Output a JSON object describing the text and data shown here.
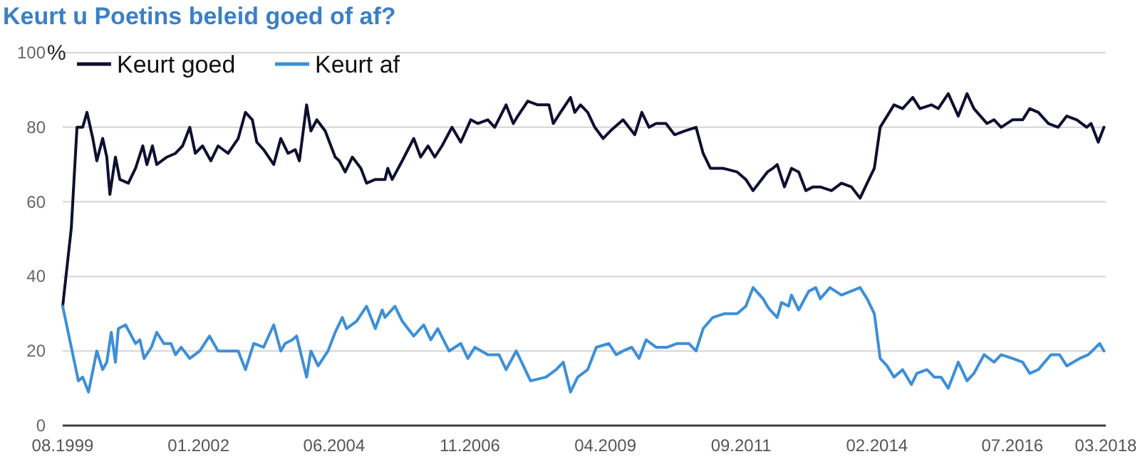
{
  "chart_data": {
    "type": "line",
    "title": "Keurt u Poetins beleid goed of af?",
    "ylabel": "%",
    "xlim": [
      "1999-08-01",
      "2018-03-01"
    ],
    "xticks": [
      {
        "value": "1999-08-01",
        "label": "08.1999"
      },
      {
        "value": "2002-01-01",
        "label": "01.2002"
      },
      {
        "value": "2004-06-01",
        "label": "06.2004"
      },
      {
        "value": "2006-11-01",
        "label": "11.2006"
      },
      {
        "value": "2009-04-01",
        "label": "04.2009"
      },
      {
        "value": "2011-09-01",
        "label": "09.2011"
      },
      {
        "value": "2014-02-01",
        "label": "02.2014"
      },
      {
        "value": "2016-07-01",
        "label": "07.2016"
      },
      {
        "value": "2018-03-01",
        "label": "03.2018"
      }
    ],
    "ylim": [
      0,
      100
    ],
    "yticks": [
      0,
      20,
      40,
      60,
      80,
      100
    ],
    "grid": "y",
    "legend": "top left",
    "marker": "none",
    "line_style": "solid",
    "series": [
      {
        "name": "Keurt goed",
        "color": "#0f1030",
        "x": [
          "1999-08-01",
          "1999-09-26",
          "1999-11-02",
          "1999-12-09",
          "2000-01-06",
          "2000-02-13",
          "2000-03-10",
          "2000-04-17",
          "2000-05-14",
          "2000-06-03",
          "2000-07-09",
          "2000-08-07",
          "2000-10-01",
          "2000-11-17",
          "2001-01-03",
          "2001-01-30",
          "2001-03-07",
          "2001-04-04",
          "2001-06-09",
          "2001-08-04",
          "2001-09-19",
          "2001-11-05",
          "2001-12-11",
          "2002-01-27",
          "2002-03-22",
          "2002-05-08",
          "2002-07-12",
          "2002-09-16",
          "2002-11-02",
          "2002-12-17",
          "2003-01-15",
          "2003-02-28",
          "2003-05-05",
          "2003-06-20",
          "2003-08-06",
          "2003-09-22",
          "2003-10-19",
          "2003-12-05",
          "2004-01-02",
          "2004-02-09",
          "2004-04-04",
          "2004-06-08",
          "2004-07-05",
          "2004-08-12",
          "2004-09-28",
          "2004-11-22",
          "2004-12-29",
          "2005-02-24",
          "2005-04-28",
          "2005-05-16",
          "2005-06-14",
          "2005-08-18",
          "2005-11-01",
          "2005-12-16",
          "2006-02-02",
          "2006-03-18",
          "2006-05-04",
          "2006-07-08",
          "2006-09-03",
          "2006-11-07",
          "2006-12-22",
          "2007-02-26",
          "2007-04-12",
          "2007-06-25",
          "2007-08-11",
          "2007-09-09",
          "2007-11-13",
          "2008-01-17",
          "2008-03-30",
          "2008-04-27",
          "2008-06-13",
          "2008-08-17",
          "2008-09-14",
          "2008-10-21",
          "2008-12-07",
          "2009-01-22",
          "2009-03-17",
          "2009-05-03",
          "2009-07-25",
          "2009-10-09",
          "2009-11-24",
          "2010-01-10",
          "2010-02-25",
          "2010-04-30",
          "2010-06-25",
          "2010-08-29",
          "2010-11-12",
          "2010-12-28",
          "2011-02-13",
          "2011-05-06",
          "2011-08-07",
          "2011-10-02",
          "2011-11-18",
          "2012-02-19",
          "2012-03-26",
          "2012-04-23",
          "2012-06-09",
          "2012-07-25",
          "2012-09-10",
          "2012-10-26",
          "2012-12-12",
          "2013-01-28",
          "2013-04-11",
          "2013-06-15",
          "2013-08-19",
          "2013-10-14",
          "2013-11-29",
          "2014-01-15",
          "2014-02-22",
          "2014-04-08",
          "2014-05-23",
          "2014-07-18",
          "2014-09-22",
          "2014-11-08",
          "2015-01-21",
          "2015-03-07",
          "2015-05-11",
          "2015-07-15",
          "2015-09-10",
          "2015-10-25",
          "2016-01-18",
          "2016-03-04",
          "2016-04-19",
          "2016-07-02",
          "2016-09-06",
          "2016-10-22",
          "2016-12-17",
          "2017-02-21",
          "2017-04-25",
          "2017-06-20",
          "2017-08-24",
          "2017-10-28",
          "2017-11-25",
          "2018-01-11",
          "2018-02-17"
        ],
        "values": [
          32,
          53,
          80,
          80,
          84,
          77,
          71,
          77,
          72,
          62,
          72,
          66,
          65,
          69,
          75,
          70,
          75,
          70,
          72,
          73,
          75,
          80,
          73,
          75,
          71,
          75,
          73,
          77,
          84,
          82,
          76,
          74,
          70,
          77,
          73,
          74,
          71,
          86,
          79,
          82,
          79,
          72,
          71,
          68,
          72,
          69,
          65,
          66,
          66,
          69,
          66,
          71,
          77,
          72,
          75,
          72,
          75,
          80,
          76,
          82,
          81,
          82,
          80,
          86,
          81,
          83,
          87,
          86,
          86,
          81,
          84,
          88,
          84,
          86,
          84,
          80,
          77,
          79,
          82,
          78,
          84,
          80,
          81,
          81,
          78,
          79,
          80,
          73,
          69,
          69,
          68,
          66,
          63,
          68,
          69,
          70,
          64,
          69,
          68,
          63,
          64,
          64,
          63,
          65,
          64,
          61,
          65,
          69,
          80,
          83,
          86,
          85,
          88,
          85,
          86,
          85,
          89,
          83,
          89,
          85,
          81,
          82,
          80,
          82,
          82,
          85,
          84,
          81,
          80,
          83,
          82,
          80,
          81,
          76,
          80
        ]
      },
      {
        "name": "Keurt af",
        "color": "#3d8fd8",
        "x": [
          "1999-08-01",
          "1999-11-11",
          "1999-12-09",
          "2000-01-16",
          "2000-03-10",
          "2000-04-17",
          "2000-05-14",
          "2000-06-12",
          "2000-07-09",
          "2000-07-28",
          "2000-09-13",
          "2000-11-17",
          "2000-12-15",
          "2001-01-12",
          "2001-02-28",
          "2001-04-04",
          "2001-05-20",
          "2001-07-06",
          "2001-08-04",
          "2001-09-10",
          "2001-11-05",
          "2002-01-09",
          "2002-03-13",
          "2002-05-08",
          "2002-09-16",
          "2002-11-02",
          "2002-12-26",
          "2003-02-28",
          "2003-05-05",
          "2003-06-20",
          "2003-07-18",
          "2003-09-03",
          "2003-10-01",
          "2003-12-05",
          "2004-01-02",
          "2004-02-18",
          "2004-04-22",
          "2004-06-08",
          "2004-07-24",
          "2004-08-21",
          "2004-10-25",
          "2004-12-29",
          "2005-02-24",
          "2005-04-10",
          "2005-04-28",
          "2005-07-02",
          "2005-08-18",
          "2005-11-01",
          "2006-01-05",
          "2006-02-20",
          "2006-04-06",
          "2006-06-19",
          "2006-09-03",
          "2006-10-19",
          "2006-12-04",
          "2007-02-26",
          "2007-05-10",
          "2007-06-25",
          "2007-08-30",
          "2007-12-01",
          "2008-03-11",
          "2008-05-16",
          "2008-07-01",
          "2008-08-17",
          "2008-10-03",
          "2008-12-07",
          "2009-02-01",
          "2009-04-24",
          "2009-06-10",
          "2009-07-25",
          "2009-09-20",
          "2009-11-06",
          "2009-12-22",
          "2010-02-25",
          "2010-05-09",
          "2010-07-13",
          "2010-09-26",
          "2010-11-12",
          "2010-12-28",
          "2011-03-01",
          "2011-05-15",
          "2011-08-07",
          "2011-09-04",
          "2011-10-02",
          "2011-11-18",
          "2012-01-22",
          "2012-02-19",
          "2012-03-08",
          "2012-04-23",
          "2012-05-21",
          "2012-07-06",
          "2012-07-25",
          "2012-09-10",
          "2012-11-14",
          "2012-12-30",
          "2013-01-28",
          "2013-04-01",
          "2013-06-15",
          "2013-10-14",
          "2013-11-29",
          "2014-01-15",
          "2014-02-22",
          "2014-04-08",
          "2014-05-23",
          "2014-07-18",
          "2014-09-13",
          "2014-10-19",
          "2014-12-24",
          "2015-02-09",
          "2015-03-25",
          "2015-05-11",
          "2015-07-15",
          "2015-09-10",
          "2015-10-25",
          "2015-12-30",
          "2016-03-04",
          "2016-04-19",
          "2016-07-02",
          "2016-09-06",
          "2016-10-22",
          "2016-12-17",
          "2017-03-09",
          "2017-05-04",
          "2017-06-20",
          "2017-09-12",
          "2017-11-07",
          "2018-01-20",
          "2018-02-17"
        ],
        "values": [
          32,
          12,
          13,
          9,
          20,
          15,
          17,
          25,
          17,
          26,
          27,
          22,
          23,
          18,
          21,
          25,
          22,
          22,
          19,
          21,
          18,
          20,
          24,
          20,
          20,
          15,
          22,
          21,
          27,
          20,
          22,
          23,
          24,
          13,
          20,
          16,
          20,
          25,
          29,
          26,
          28,
          32,
          26,
          31,
          29,
          32,
          28,
          24,
          27,
          23,
          26,
          20,
          22,
          18,
          21,
          19,
          19,
          15,
          20,
          12,
          13,
          15,
          17,
          9,
          13,
          15,
          21,
          22,
          19,
          20,
          21,
          18,
          23,
          21,
          21,
          22,
          22,
          20,
          26,
          29,
          30,
          30,
          31,
          32,
          37,
          34,
          32,
          31,
          29,
          33,
          32,
          35,
          31,
          36,
          37,
          34,
          37,
          35,
          37,
          34,
          30,
          18,
          16,
          13,
          15,
          11,
          14,
          15,
          13,
          13,
          10,
          17,
          12,
          14,
          19,
          17,
          19,
          18,
          17,
          14,
          15,
          19,
          19,
          16,
          18,
          19,
          22,
          20
        ]
      }
    ]
  }
}
